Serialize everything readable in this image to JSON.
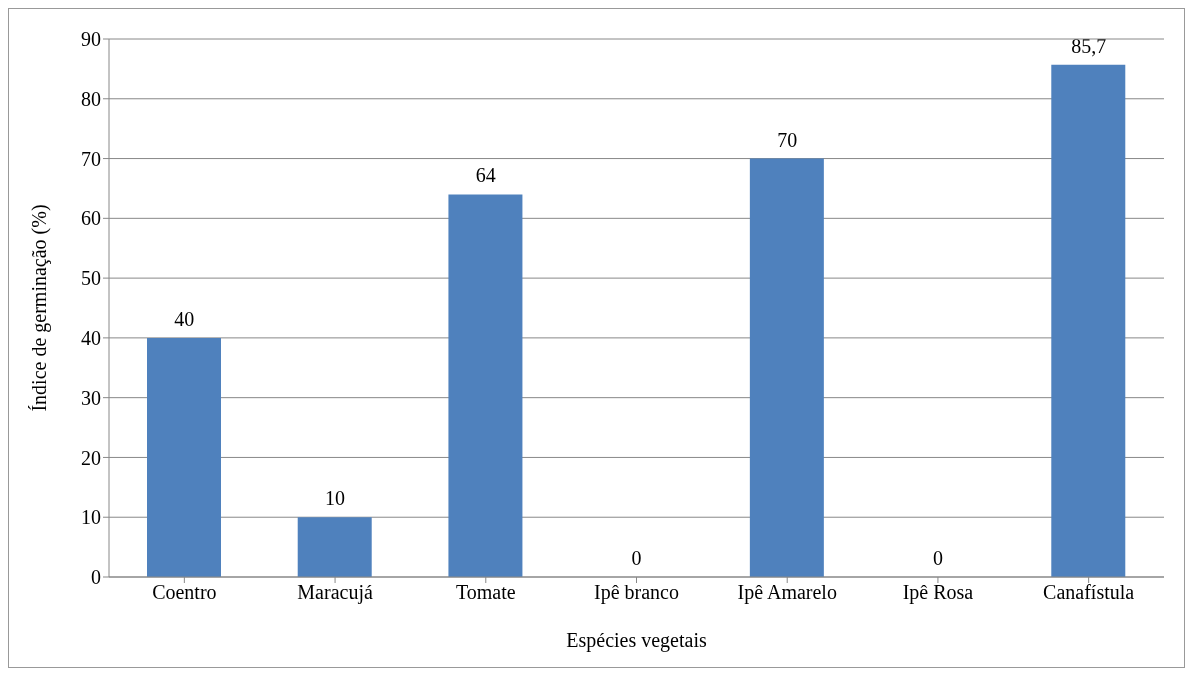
{
  "chart_data": {
    "type": "bar",
    "xlabel": "Espécies vegetais",
    "ylabel": "Índice de germinação (%)",
    "categories": [
      "Coentro",
      "Maracujá",
      "Tomate",
      "Ipê branco",
      "Ipê Amarelo",
      "Ipê Rosa",
      "Canafístula"
    ],
    "values": [
      40,
      10,
      64,
      0,
      70,
      0,
      85.7
    ],
    "value_labels": [
      "40",
      "10",
      "64",
      "0",
      "70",
      "0",
      "85,7"
    ],
    "color": "#4f81bd",
    "ylim": [
      0,
      90
    ],
    "yticks": [
      0,
      10,
      20,
      30,
      40,
      50,
      60,
      70,
      80,
      90
    ],
    "grid": "y"
  }
}
